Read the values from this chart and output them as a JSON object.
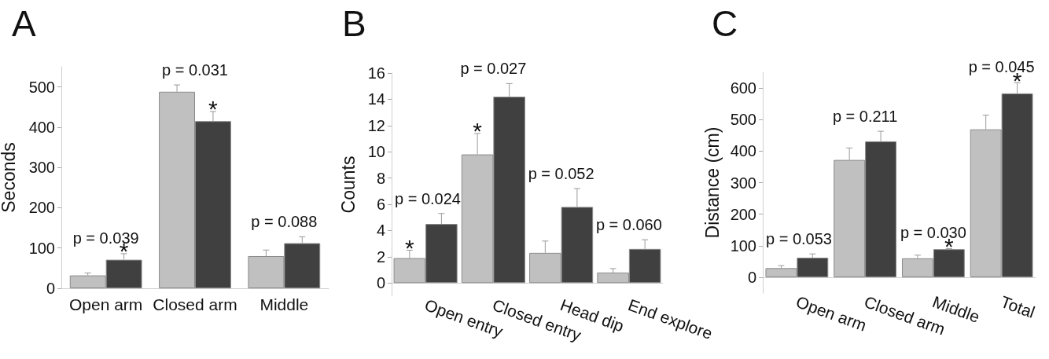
{
  "chart_data": [
    {
      "type": "bar",
      "title": "A",
      "ylabel": "Seconds",
      "categories": [
        "Open arm",
        "Closed arm",
        "Middle"
      ],
      "series": [
        {
          "color": "#c0c0c0",
          "values": [
            32,
            488,
            80
          ],
          "errors": [
            [
              32,
              38
            ],
            [
              488,
              505
            ],
            [
              80,
              95
            ]
          ]
        },
        {
          "color": "#404040",
          "values": [
            71,
            415,
            112
          ],
          "errors": [
            [
              71,
              86
            ],
            [
              415,
              439
            ],
            [
              112,
              128
            ]
          ]
        }
      ],
      "ylim": [
        0,
        550
      ],
      "yticks": [
        0,
        100,
        200,
        300,
        400,
        500
      ],
      "grid": false,
      "annotations": [
        {
          "text": "p = 0.039",
          "x": "Open arm",
          "y": 71
        },
        {
          "text": "*",
          "x": "Open arm",
          "y": 71
        },
        {
          "text": "p = 0.031",
          "x": "Closed arm",
          "y": 488
        },
        {
          "text": "*",
          "x": "Closed arm",
          "y": 415
        },
        {
          "text": "p = 0.088",
          "x": "Middle",
          "y": 112
        }
      ]
    },
    {
      "type": "bar",
      "title": "B",
      "ylabel": "Counts",
      "categories": [
        "Open entry",
        "Closed entry",
        "Head dip",
        "End explore"
      ],
      "series": [
        {
          "color": "#c0c0c0",
          "values": [
            1.9,
            9.8,
            2.3,
            0.8
          ],
          "errors": [
            [
              1.9,
              2.5
            ],
            [
              9.8,
              11.4
            ],
            [
              2.3,
              3.2
            ],
            [
              0.8,
              1.1
            ]
          ]
        },
        {
          "color": "#404040",
          "values": [
            4.5,
            14.2,
            5.8,
            2.6
          ],
          "errors": [
            [
              4.5,
              5.3
            ],
            [
              14.2,
              15.2
            ],
            [
              5.8,
              7.2
            ],
            [
              2.6,
              3.3
            ]
          ]
        }
      ],
      "ylim": [
        -1,
        16
      ],
      "yticks": [
        0,
        2,
        4,
        6,
        8,
        10,
        12,
        14,
        16
      ],
      "grid": false,
      "annotations": [
        {
          "text": "p = 0.024",
          "x": "Open entry",
          "y": 4.5
        },
        {
          "text": "*",
          "x": "Open entry",
          "y": 1.9
        },
        {
          "text": "p = 0.027",
          "x": "Closed entry",
          "y": 14.2
        },
        {
          "text": "*",
          "x": "Closed entry",
          "y": 9.8
        },
        {
          "text": "p = 0.052",
          "x": "Head dip",
          "y": 5.8
        },
        {
          "text": "p = 0.060",
          "x": "End explore",
          "y": 2.6
        }
      ]
    },
    {
      "type": "bar",
      "title": "C",
      "ylabel": "Distance (cm)",
      "categories": [
        "Open arm",
        "Closed arm",
        "Middle",
        "Total"
      ],
      "series": [
        {
          "color": "#c0c0c0",
          "values": [
            29,
            372,
            60,
            469
          ],
          "errors": [
            [
              29,
              37
            ],
            [
              372,
              410
            ],
            [
              60,
              70
            ],
            [
              469,
              514
            ]
          ]
        },
        {
          "color": "#404040",
          "values": [
            62,
            431,
            89,
            583
          ],
          "errors": [
            [
              62,
              74
            ],
            [
              431,
              463
            ],
            [
              89,
              91
            ],
            [
              583,
              617
            ]
          ]
        }
      ],
      "ylim": [
        -50,
        650
      ],
      "yticks": [
        0,
        100,
        200,
        300,
        400,
        500,
        600
      ],
      "grid": false,
      "annotations": [
        {
          "text": "p = 0.053",
          "x": "Open arm",
          "y": 62
        },
        {
          "text": "p = 0.211",
          "x": "Closed arm",
          "y": 431
        },
        {
          "text": "p = 0.030",
          "x": "Middle",
          "y": 89
        },
        {
          "text": "*",
          "x": "Middle",
          "y": 89
        },
        {
          "text": "p = 0.045",
          "x": "Total",
          "y": 583
        },
        {
          "text": "*",
          "x": "Total",
          "y": 583
        }
      ]
    }
  ]
}
